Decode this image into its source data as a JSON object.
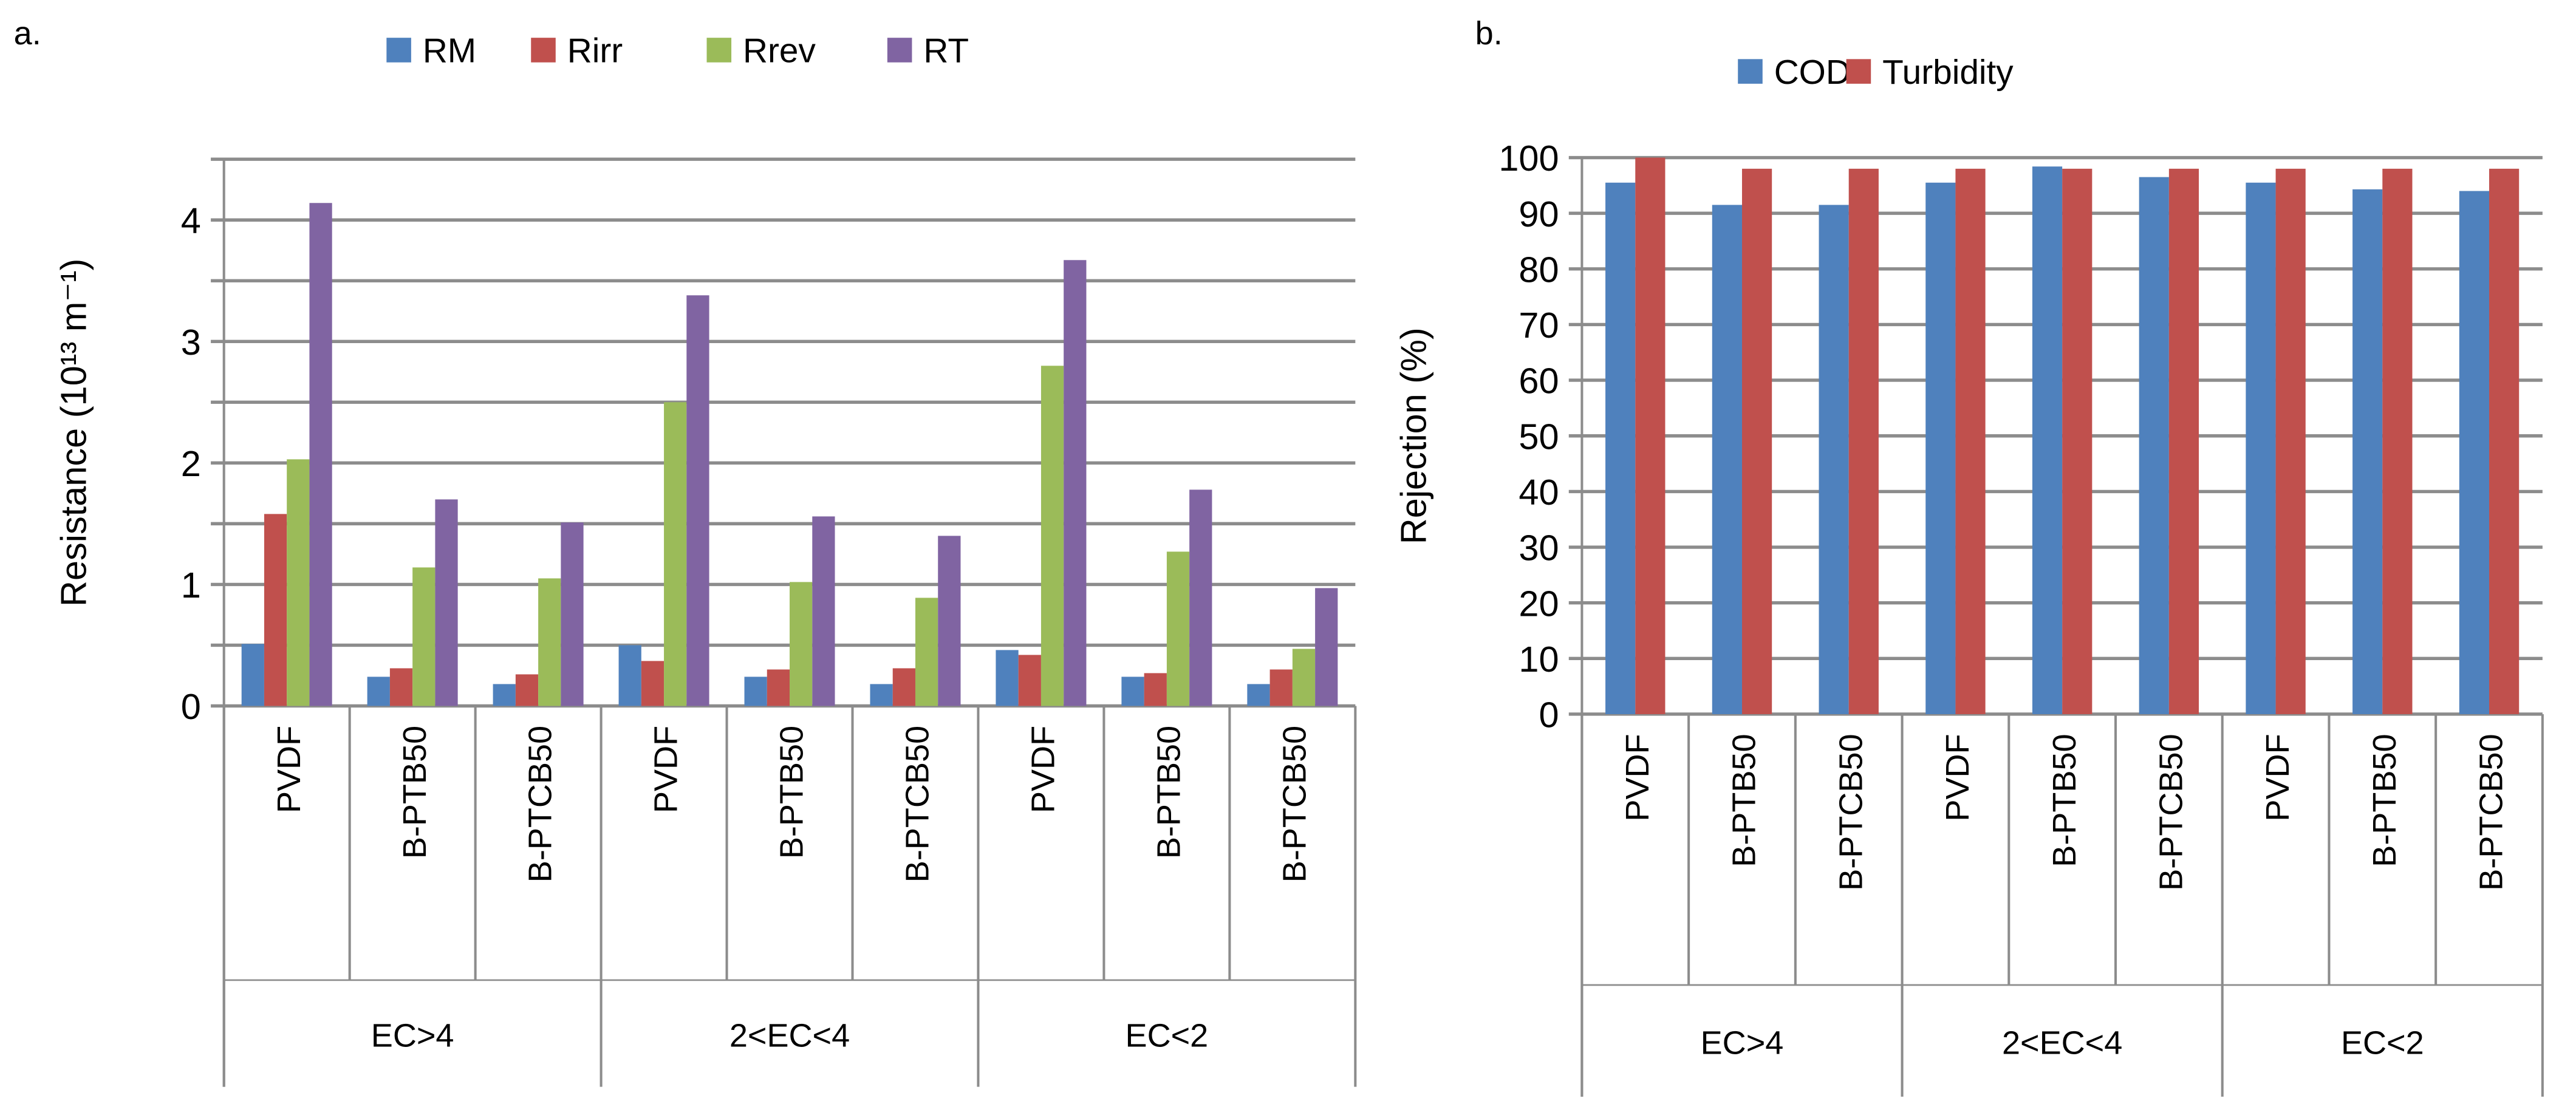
{
  "colors": {
    "RM": "#4F81BD",
    "Rirr": "#C0504D",
    "Rrev": "#9BBB59",
    "RT": "#8064A2",
    "COD": "#4F81BD",
    "Turbidity": "#C0504D",
    "grid": "#8c8c8c"
  },
  "chart_data": [
    {
      "panel": "a.",
      "type": "bar",
      "ylabel": "Resistance (10¹³ m⁻¹)",
      "ylim": [
        0,
        4.5
      ],
      "yticks": [
        0,
        1,
        2,
        3,
        4
      ],
      "grid_step": 0.5,
      "legend_position": "top",
      "groups": [
        "EC>4",
        "2<EC<4",
        "EC<2"
      ],
      "categories": [
        "PVDF",
        "B-PTB50",
        "B-PTCB50",
        "PVDF",
        "B-PTB50",
        "B-PTCB50",
        "PVDF",
        "B-PTB50",
        "B-PTCB50"
      ],
      "series": [
        {
          "name": "RM",
          "values": [
            0.51,
            0.24,
            0.18,
            0.5,
            0.24,
            0.18,
            0.46,
            0.24,
            0.18
          ]
        },
        {
          "name": "Rirr",
          "values": [
            1.58,
            0.31,
            0.26,
            0.37,
            0.3,
            0.31,
            0.42,
            0.27,
            0.3
          ]
        },
        {
          "name": "Rrev",
          "values": [
            2.03,
            1.14,
            1.05,
            2.5,
            1.02,
            0.89,
            2.8,
            1.27,
            0.47
          ]
        },
        {
          "name": "RT",
          "values": [
            4.14,
            1.7,
            1.51,
            3.38,
            1.56,
            1.4,
            3.67,
            1.78,
            0.97
          ]
        }
      ]
    },
    {
      "panel": "b.",
      "type": "bar",
      "ylabel": "Rejection (%)",
      "ylim": [
        0,
        100
      ],
      "yticks": [
        0,
        10,
        20,
        30,
        40,
        50,
        60,
        70,
        80,
        90,
        100
      ],
      "grid_step": 10,
      "legend_position": "top",
      "groups": [
        "EC>4",
        "2<EC<4",
        "EC<2"
      ],
      "categories": [
        "PVDF",
        "B-PTB50",
        "B-PTCB50",
        "PVDF",
        "B-PTB50",
        "B-PTCB50",
        "PVDF",
        "B-PTB50",
        "B-PTCB50"
      ],
      "series": [
        {
          "name": "COD",
          "values": [
            95.5,
            91.5,
            91.5,
            95.5,
            98.4,
            96.5,
            95.5,
            94.3,
            94.0
          ]
        },
        {
          "name": "Turbidity",
          "values": [
            100,
            98,
            98,
            98,
            98,
            98,
            98,
            98,
            98
          ]
        }
      ]
    }
  ]
}
